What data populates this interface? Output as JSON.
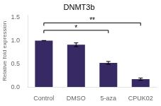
{
  "chart_data": {
    "type": "bar",
    "title": "DNMT3b",
    "ylabel": "Relative fold expression",
    "categories": [
      "Control",
      "DMSO",
      "5-aza",
      "CPUK02"
    ],
    "values": [
      1.0,
      0.91,
      0.52,
      0.17
    ],
    "errors": [
      0.0,
      0.04,
      0.03,
      0.025
    ],
    "color": "#372963",
    "ylim": [
      0,
      1.55
    ],
    "yticks": [
      {
        "value": 0,
        "label": "0.0"
      },
      0.5,
      {
        "value": 1,
        "label": "1.0"
      },
      1.5
    ],
    "grid": false,
    "annotations": [
      {
        "x1": "Control",
        "x2": "CPUK02",
        "y": 1.38,
        "label": "**"
      },
      {
        "x1": "Control",
        "x2": "5-aza",
        "y": 1.22,
        "label": "*"
      }
    ]
  }
}
